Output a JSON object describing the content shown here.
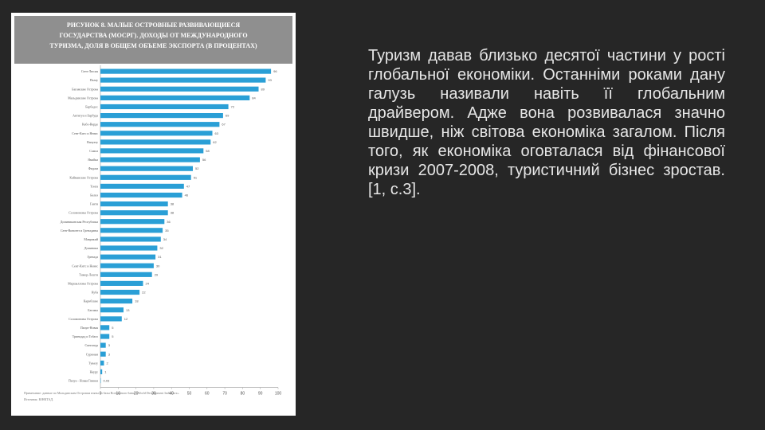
{
  "figure": {
    "title_lines": [
      "РИСУНОК 8. МАЛЫЕ ОСТРОВНЫЕ РАЗВИВАЮЩИЕСЯ",
      "ГОСУДАРСТВА (МОСРГ). ДОХОДЫ ОТ МЕЖДУНАРОДНОГО",
      "ТУРИЗМА, ДОЛЯ В ОБЩЕМ ОБЪЕМЕ ЭКСПОРТА (в процентах)"
    ],
    "note_lines": [
      "Примечание: данные по Мальдивским Островам взяты из базы Всемирного банка «World Development Indicators».",
      "Источник: ЮНКТАД."
    ]
  },
  "chart_data": {
    "type": "bar",
    "orientation": "horizontal",
    "categories": [
      "Сент-Люсия",
      "Палау",
      "Багамские Острова",
      "Мальдивские Острова",
      "Барбадос",
      "Антигуа и Барбуда",
      "Кабо-Верде",
      "Сент-Китс и Невис",
      "Вануату",
      "Самоа",
      "Ямайка",
      "Фиджи",
      "Кайманские Острова",
      "Тонга",
      "Белиз",
      "Гаити",
      "Соломоновы Острова",
      "Доминиканская Республика",
      "Сент-Винсент и Гренадины",
      "Маврикий",
      "Доминика",
      "Гренада",
      "Сент-Китс и Невис",
      "Тимор-Лешти",
      "Маршалловы Острова",
      "Куба",
      "Карибские",
      "Багамы",
      "Соломоновы Острова",
      "Папуа-Новая",
      "Тринидад и Тобаго",
      "Сингапур",
      "Суринам",
      "Тувалу",
      "Науру",
      "Папуа - Новая Гвинея"
    ],
    "values": [
      96,
      93,
      89,
      84,
      72,
      69,
      67,
      63,
      62,
      58,
      56,
      52,
      51,
      47,
      46,
      38,
      38,
      36,
      35,
      34,
      32,
      31,
      30,
      29,
      24,
      22,
      18,
      13,
      12,
      5,
      5,
      3,
      3,
      2,
      1,
      0.03
    ],
    "data_labels": [
      "96",
      "93",
      "89",
      "84",
      "72",
      "69",
      "67",
      "63",
      "62",
      "58",
      "56",
      "52",
      "51",
      "47",
      "46",
      "38",
      "38",
      "36",
      "35",
      "34",
      "32",
      "31",
      "30",
      "29",
      "24",
      "22",
      "18",
      "13",
      "12",
      "5",
      "5",
      "3",
      "3",
      "2",
      "1",
      "0,03"
    ],
    "xlim": [
      0,
      100
    ],
    "xticks": [
      0,
      10,
      20,
      30,
      40,
      50,
      60,
      70,
      80,
      90,
      100
    ],
    "bar_color": "#2a9fd6",
    "grid": false
  },
  "slide": {
    "paragraph": "Туризм давав близько десятої частини у рості глобальної економіки. Останніми роками дану галузь називали навіть її глобальним драйвером. Адже вона розвивалася значно швидше, ніж світова економіка загалом. Після того, як економіка оговталася від фінансової кризи 2007-2008, туристичний бізнес зростав. [1, с.3]."
  }
}
